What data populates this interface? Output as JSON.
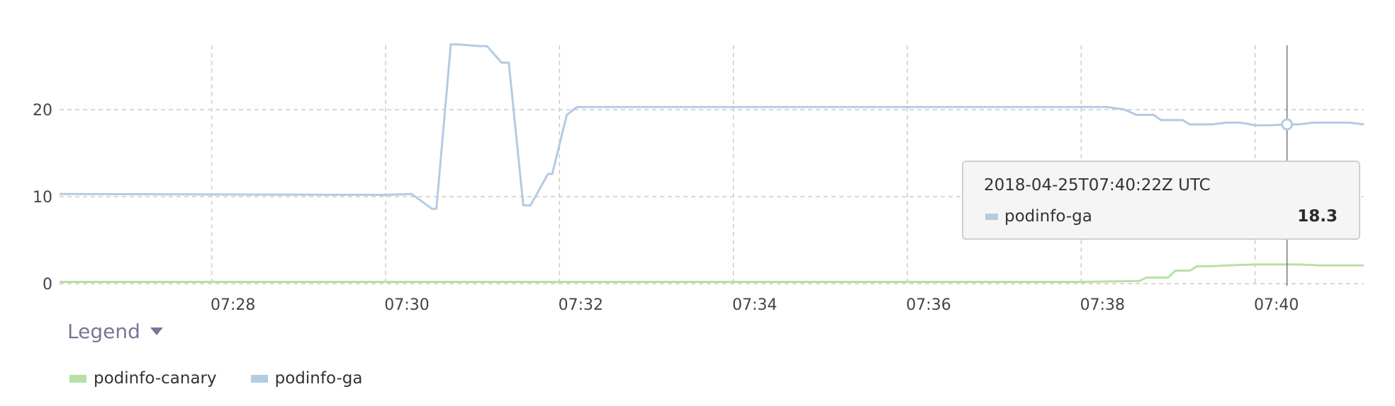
{
  "chart_data": {
    "type": "line",
    "x_ticks": [
      "07:28",
      "07:30",
      "07:32",
      "07:34",
      "07:36",
      "07:38",
      "07:40"
    ],
    "y_ticks": [
      0,
      10,
      20
    ],
    "xlim": [
      "07:26:15",
      "07:41:15"
    ],
    "ylim": [
      0,
      28
    ],
    "grid": true,
    "legend_position": "bottom-left",
    "series": [
      {
        "name": "podinfo-canary",
        "color": "#b8e0a5",
        "x": [
          "07:26:15",
          "07:30:00",
          "07:34:00",
          "07:38:00",
          "07:38:40",
          "07:38:45",
          "07:39:00",
          "07:39:05",
          "07:39:15",
          "07:39:20",
          "07:39:30",
          "07:39:40",
          "07:40:00",
          "07:40:15",
          "07:40:30",
          "07:40:45",
          "07:41:15"
        ],
        "y": [
          0.2,
          0.2,
          0.2,
          0.2,
          0.3,
          0.7,
          0.7,
          1.5,
          1.5,
          2.0,
          2.0,
          2.1,
          2.2,
          2.2,
          2.2,
          2.1,
          2.1
        ]
      },
      {
        "name": "podinfo-ga",
        "color": "#b3cbe3",
        "x": [
          "07:26:15",
          "07:30:00",
          "07:30:18",
          "07:30:32",
          "07:30:35",
          "07:30:45",
          "07:30:50",
          "07:31:05",
          "07:31:10",
          "07:31:20",
          "07:31:25",
          "07:31:35",
          "07:31:40",
          "07:31:52",
          "07:31:55",
          "07:32:05",
          "07:32:12",
          "07:33:00",
          "07:35:00",
          "07:37:00",
          "07:38:18",
          "07:38:30",
          "07:38:38",
          "07:38:50",
          "07:38:55",
          "07:39:10",
          "07:39:15",
          "07:39:30",
          "07:39:40",
          "07:39:50",
          "07:40:00",
          "07:40:10",
          "07:40:22",
          "07:40:30",
          "07:40:40",
          "07:41:05",
          "07:41:15"
        ],
        "y": [
          10.3,
          10.2,
          10.3,
          8.6,
          8.6,
          27.5,
          27.5,
          27.3,
          27.3,
          25.4,
          25.4,
          9.0,
          9.0,
          12.6,
          12.6,
          19.4,
          20.3,
          20.3,
          20.3,
          20.3,
          20.3,
          20.0,
          19.4,
          19.4,
          18.8,
          18.8,
          18.3,
          18.3,
          18.5,
          18.5,
          18.2,
          18.2,
          18.3,
          18.3,
          18.5,
          18.5,
          18.3
        ]
      }
    ],
    "tooltip": {
      "timestamp": "2018-04-25T07:40:22Z UTC",
      "series": "podinfo-ga",
      "value": "18.3",
      "x": "07:40:22"
    }
  },
  "legend": {
    "toggle_label": "Legend",
    "items": [
      {
        "label": "podinfo-canary",
        "color": "#b8e0a5"
      },
      {
        "label": "podinfo-ga",
        "color": "#b3cbe3"
      }
    ]
  }
}
